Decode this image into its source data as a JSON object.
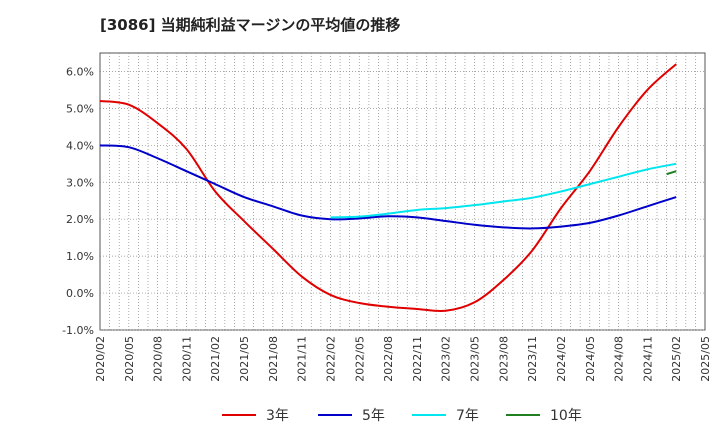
{
  "title": "[3086]  当期純利益マージンの平均値の推移",
  "chart_data": {
    "type": "line",
    "categories": [
      "2020/02",
      "2020/05",
      "2020/08",
      "2020/11",
      "2021/02",
      "2021/05",
      "2021/08",
      "2021/11",
      "2022/02",
      "2022/05",
      "2022/08",
      "2022/11",
      "2023/02",
      "2023/05",
      "2023/08",
      "2023/11",
      "2024/02",
      "2024/05",
      "2024/08",
      "2024/11",
      "2025/02",
      "2025/05"
    ],
    "yticks": [
      "6.0%",
      "5.0%",
      "4.0%",
      "3.0%",
      "2.0%",
      "1.0%",
      "0.0%",
      "-1.0%"
    ],
    "ylim": [
      -1.0,
      6.5
    ],
    "grid": true,
    "legend_position": "bottom",
    "series": [
      {
        "name": "3年",
        "color": "#e00000",
        "values": [
          5.2,
          5.1,
          4.6,
          3.9,
          2.75,
          1.95,
          1.2,
          0.45,
          -0.05,
          -0.27,
          -0.37,
          -0.43,
          -0.48,
          -0.25,
          0.35,
          1.15,
          2.3,
          3.3,
          4.5,
          5.5,
          6.2,
          null
        ]
      },
      {
        "name": "5年",
        "color": "#0000c8",
        "values": [
          4.0,
          3.95,
          3.65,
          3.3,
          2.95,
          2.6,
          2.35,
          2.1,
          2.0,
          2.02,
          2.08,
          2.05,
          1.95,
          1.85,
          1.78,
          1.75,
          1.8,
          1.9,
          2.1,
          2.35,
          2.6,
          null
        ]
      },
      {
        "name": "7年",
        "color": "#00e5ee",
        "values": [
          null,
          null,
          null,
          null,
          null,
          null,
          null,
          null,
          2.05,
          2.07,
          2.15,
          2.25,
          2.3,
          2.38,
          2.48,
          2.58,
          2.75,
          2.95,
          3.15,
          3.35,
          3.5,
          null
        ]
      },
      {
        "name": "10年",
        "color": "#208020",
        "values": [
          null,
          null,
          null,
          null,
          null,
          null,
          null,
          null,
          null,
          null,
          null,
          null,
          null,
          null,
          null,
          null,
          null,
          null,
          null,
          null,
          3.3,
          null
        ]
      }
    ],
    "series_extra": {
      "10年_start": 3.22
    }
  }
}
